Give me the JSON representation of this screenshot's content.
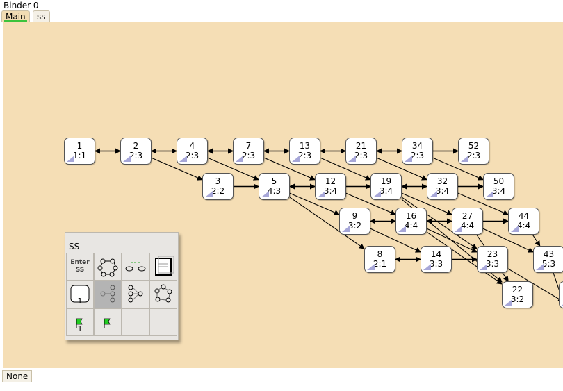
{
  "window": {
    "title": "Binder 0"
  },
  "tabs": [
    {
      "label": "Main",
      "active": true
    },
    {
      "label": "ss",
      "active": false
    }
  ],
  "nodes": [
    {
      "id": "1",
      "label": "1:1",
      "col": 0,
      "row": 0
    },
    {
      "id": "2",
      "label": "2:3",
      "col": 1,
      "row": 0
    },
    {
      "id": "4",
      "label": "2:3",
      "col": 2,
      "row": 0
    },
    {
      "id": "7",
      "label": "2:3",
      "col": 3,
      "row": 0
    },
    {
      "id": "13",
      "label": "2:3",
      "col": 4,
      "row": 0
    },
    {
      "id": "21",
      "label": "2:3",
      "col": 5,
      "row": 0
    },
    {
      "id": "34",
      "label": "2:3",
      "col": 6,
      "row": 0
    },
    {
      "id": "52",
      "label": "2:3",
      "col": 7,
      "row": 0
    },
    {
      "id": "3",
      "label": "2:2",
      "col": 0,
      "row": 1
    },
    {
      "id": "5",
      "label": "4:3",
      "col": 1,
      "row": 1
    },
    {
      "id": "12",
      "label": "3:4",
      "col": 2,
      "row": 1
    },
    {
      "id": "19",
      "label": "3:4",
      "col": 3,
      "row": 1
    },
    {
      "id": "32",
      "label": "3:4",
      "col": 4,
      "row": 1
    },
    {
      "id": "50",
      "label": "3:4",
      "col": 5,
      "row": 1
    },
    {
      "id": "9",
      "label": "3:2",
      "col": 0,
      "row": 2
    },
    {
      "id": "16",
      "label": "4:4",
      "col": 1,
      "row": 2
    },
    {
      "id": "27",
      "label": "4:4",
      "col": 2,
      "row": 2
    },
    {
      "id": "44",
      "label": "4:4",
      "col": 3,
      "row": 2
    },
    {
      "id": "8",
      "label": "2:1",
      "col": 0,
      "row": 3
    },
    {
      "id": "14",
      "label": "3:3",
      "col": 1,
      "row": 3
    },
    {
      "id": "23",
      "label": "3:3",
      "col": 2,
      "row": 3
    },
    {
      "id": "43",
      "label": "5:3",
      "col": 3,
      "row": 3
    },
    {
      "id": "22",
      "label": "3:2",
      "col": 0,
      "row": 4
    },
    {
      "id": "",
      "label": "",
      "col": 1,
      "row": 4
    }
  ],
  "edges": [
    [
      "1",
      "2",
      "both"
    ],
    [
      "2",
      "4",
      "both"
    ],
    [
      "4",
      "7",
      "both"
    ],
    [
      "7",
      "13",
      "both"
    ],
    [
      "13",
      "21",
      "both"
    ],
    [
      "21",
      "34",
      "both"
    ],
    [
      "34",
      "52",
      "fwd"
    ],
    [
      "2",
      "3",
      "fwd"
    ],
    [
      "4",
      "5",
      "fwd"
    ],
    [
      "7",
      "12",
      "fwd"
    ],
    [
      "13",
      "19",
      "fwd"
    ],
    [
      "21",
      "32",
      "fwd"
    ],
    [
      "34",
      "50",
      "fwd"
    ],
    [
      "3",
      "5",
      "fwd"
    ],
    [
      "5",
      "12",
      "both"
    ],
    [
      "12",
      "19",
      "fwd"
    ],
    [
      "19",
      "32",
      "both"
    ],
    [
      "32",
      "50",
      "fwd"
    ],
    [
      "5",
      "9",
      "fwd"
    ],
    [
      "12",
      "16",
      "fwd"
    ],
    [
      "19",
      "27",
      "fwd"
    ],
    [
      "32",
      "44",
      "fwd"
    ],
    [
      "9",
      "16",
      "both"
    ],
    [
      "16",
      "27",
      "both"
    ],
    [
      "27",
      "44",
      "fwd"
    ],
    [
      "5",
      "8",
      "fwd"
    ],
    [
      "8",
      "14",
      "both"
    ],
    [
      "9",
      "14",
      "fwd"
    ],
    [
      "16",
      "23",
      "fwd"
    ],
    [
      "27",
      "43",
      "fwd"
    ],
    [
      "14",
      "23",
      "fwd"
    ],
    [
      "16",
      "22",
      "fwd"
    ],
    [
      "19",
      "22",
      "fwd"
    ],
    [
      "19",
      "23",
      "fwd"
    ],
    [
      "27",
      "22",
      "fwd"
    ],
    [
      "44",
      "43",
      "fwd"
    ],
    [
      "43",
      "edge",
      "fwd"
    ],
    [
      "23",
      "edge",
      "fwd"
    ]
  ],
  "palette": {
    "title": "SS",
    "tools": [
      {
        "name": "enter-ss",
        "text": "Enter",
        "text2": "SS"
      },
      {
        "name": "graph-tool",
        "text": ""
      },
      {
        "name": "link-tool",
        "text": ""
      },
      {
        "name": "note-tool",
        "text": ""
      },
      {
        "name": "node-tool",
        "text": "1"
      },
      {
        "name": "chain-tool",
        "text": ""
      },
      {
        "name": "chain2-tool",
        "text": ""
      },
      {
        "name": "graph2-tool",
        "text": ""
      },
      {
        "name": "flag-tool",
        "text": "1"
      },
      {
        "name": "flag2-tool",
        "text": ""
      },
      {
        "name": "empty1",
        "text": ""
      },
      {
        "name": "empty2",
        "text": ""
      }
    ]
  },
  "status": {
    "label": "None"
  }
}
